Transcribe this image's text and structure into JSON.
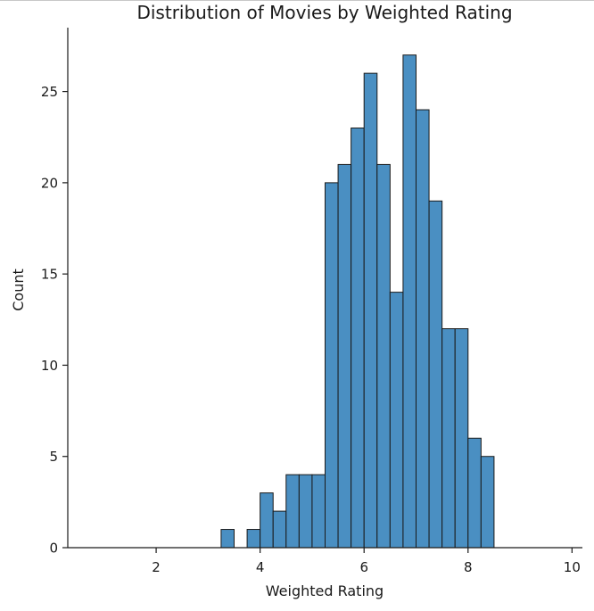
{
  "chart_data": {
    "type": "bar",
    "title": "Distribution of Movies by Weighted Rating",
    "xlabel": "Weighted Rating",
    "ylabel": "Count",
    "xlim": [
      0.3,
      10.2
    ],
    "ylim": [
      0,
      28.5
    ],
    "xticks": [
      2,
      4,
      6,
      8,
      10
    ],
    "yticks": [
      0,
      5,
      10,
      15,
      20,
      25
    ],
    "bin_width": 0.25,
    "bins": [
      {
        "x0": 3.25,
        "count": 1
      },
      {
        "x0": 3.5,
        "count": 0
      },
      {
        "x0": 3.75,
        "count": 1
      },
      {
        "x0": 4.0,
        "count": 3
      },
      {
        "x0": 4.25,
        "count": 2
      },
      {
        "x0": 4.5,
        "count": 4
      },
      {
        "x0": 4.75,
        "count": 4
      },
      {
        "x0": 5.0,
        "count": 4
      },
      {
        "x0": 5.25,
        "count": 20
      },
      {
        "x0": 5.5,
        "count": 21
      },
      {
        "x0": 5.75,
        "count": 23
      },
      {
        "x0": 6.0,
        "count": 26
      },
      {
        "x0": 6.25,
        "count": 21
      },
      {
        "x0": 6.5,
        "count": 14
      },
      {
        "x0": 6.75,
        "count": 27
      },
      {
        "x0": 7.0,
        "count": 24
      },
      {
        "x0": 7.25,
        "count": 19
      },
      {
        "x0": 7.5,
        "count": 12
      },
      {
        "x0": 7.75,
        "count": 12
      },
      {
        "x0": 8.0,
        "count": 6
      },
      {
        "x0": 8.25,
        "count": 5
      }
    ],
    "grid": false,
    "legend": "none"
  }
}
